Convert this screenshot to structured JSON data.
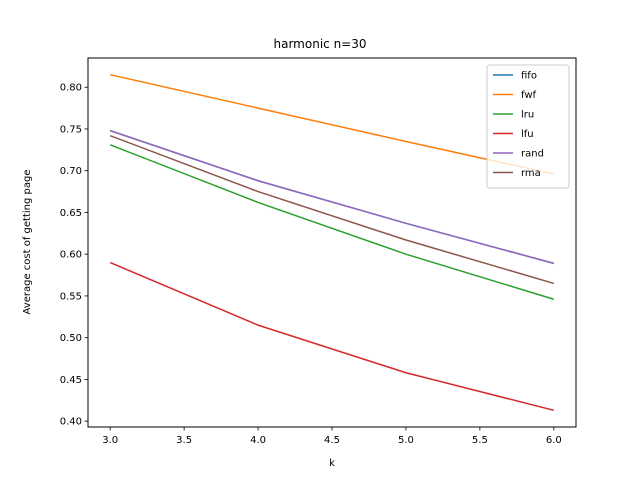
{
  "chart_data": {
    "type": "line",
    "title": "harmonic n=30",
    "xlabel": "k",
    "ylabel": "Average cost of getting page",
    "x": [
      3,
      4,
      5,
      6
    ],
    "xlim": [
      2.85,
      6.15
    ],
    "ylim": [
      0.393,
      0.835
    ],
    "xticks": [
      3.0,
      3.5,
      4.0,
      4.5,
      5.0,
      5.5,
      6.0
    ],
    "xtick_labels": [
      "3.0",
      "3.5",
      "4.0",
      "4.5",
      "5.0",
      "5.5",
      "6.0"
    ],
    "yticks": [
      0.4,
      0.45,
      0.5,
      0.55,
      0.6,
      0.65,
      0.7,
      0.75,
      0.8
    ],
    "ytick_labels": [
      "0.40",
      "0.45",
      "0.50",
      "0.55",
      "0.60",
      "0.65",
      "0.70",
      "0.75",
      "0.80"
    ],
    "grid": false,
    "legend_position": "top-right",
    "series": [
      {
        "name": "fifo",
        "color": "#1f77b4",
        "values": [
          0.748,
          0.688,
          0.637,
          0.589
        ]
      },
      {
        "name": "fwf",
        "color": "#ff7f0e",
        "values": [
          0.815,
          0.775,
          0.735,
          0.696
        ]
      },
      {
        "name": "lru",
        "color": "#2ca02c",
        "values": [
          0.731,
          0.662,
          0.6,
          0.546
        ]
      },
      {
        "name": "lfu",
        "color": "#d62728",
        "values": [
          0.59,
          0.515,
          0.458,
          0.413
        ]
      },
      {
        "name": "rand",
        "color": "#9467bd",
        "values": [
          0.748,
          0.688,
          0.637,
          0.589
        ]
      },
      {
        "name": "rma",
        "color": "#8c564b",
        "values": [
          0.742,
          0.675,
          0.617,
          0.565
        ]
      }
    ]
  }
}
